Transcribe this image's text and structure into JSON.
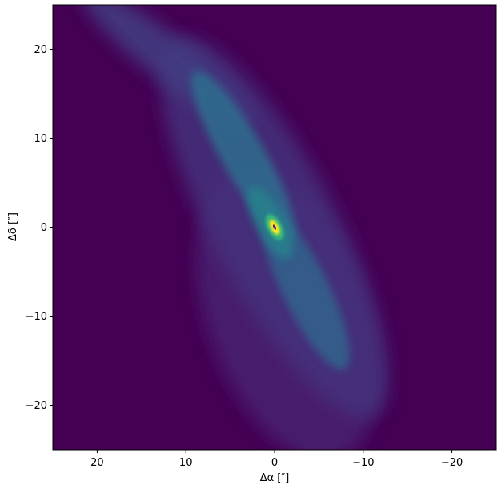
{
  "chart_data": {
    "type": "heatmap",
    "colormap": "viridis",
    "background_color": "#440154",
    "peak_color": "#fde725",
    "xlabel": "Δα [″]",
    "ylabel": "Δδ [″]",
    "xlim": [
      25,
      -25
    ],
    "ylim": [
      -25,
      25
    ],
    "x_ticks": [
      20,
      10,
      0,
      -10,
      -20
    ],
    "x_tick_labels": [
      "20",
      "10",
      "0",
      "−10",
      "−20"
    ],
    "y_ticks": [
      20,
      10,
      0,
      -10,
      -20
    ],
    "y_tick_labels": [
      "20",
      "10",
      "0",
      "−10",
      "−20"
    ],
    "grid": false,
    "features": [
      {
        "name": "central-peak",
        "x": 0,
        "y": 0,
        "semi_major": 0.9,
        "semi_minor": 0.45,
        "angle_deg": 62,
        "level": 1.0
      },
      {
        "name": "inner-ring",
        "x": 0,
        "y": 0,
        "semi_major": 1.6,
        "semi_minor": 0.8,
        "angle_deg": 62,
        "level": 0.75
      },
      {
        "name": "inner-glow",
        "x": 0.5,
        "y": 0.5,
        "semi_major": 4.5,
        "semi_minor": 1.6,
        "angle_deg": 62,
        "level": 0.55
      },
      {
        "name": "upper-arm",
        "x": 3.5,
        "y": 8,
        "semi_major": 11,
        "semi_minor": 2.4,
        "angle_deg": 60,
        "level": 0.45
      },
      {
        "name": "lower-arm",
        "x": -3.5,
        "y": -7,
        "semi_major": 10,
        "semi_minor": 2.6,
        "angle_deg": 64,
        "level": 0.4
      },
      {
        "name": "faint-outer-halo",
        "x": 0,
        "y": 0,
        "semi_major": 24,
        "semi_minor": 7,
        "angle_deg": 62,
        "level": 0.18
      },
      {
        "name": "diffuse-lower-halo",
        "x": -1.5,
        "y": -10,
        "semi_major": 17,
        "semi_minor": 9,
        "angle_deg": 70,
        "level": 0.12
      },
      {
        "name": "upper-left-fan",
        "x": 12,
        "y": 19,
        "semi_major": 12,
        "semi_minor": 2.5,
        "angle_deg": 38,
        "level": 0.22
      }
    ]
  }
}
